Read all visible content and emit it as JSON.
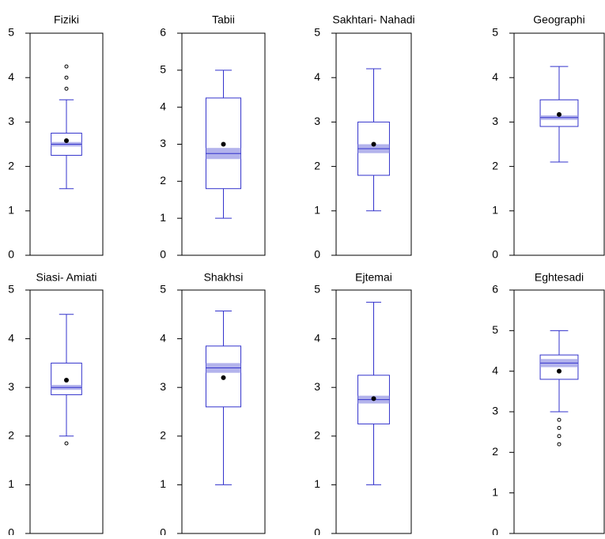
{
  "chart_data": [
    {
      "type": "box",
      "title": "Fiziki",
      "ylim": [
        0,
        5
      ],
      "yticks": [
        0,
        1,
        2,
        3,
        4,
        5
      ],
      "color": "#3333cc",
      "ci_color": "#9999e6",
      "whisker_low": 1.5,
      "q1": 2.25,
      "median": 2.5,
      "q3": 2.75,
      "whisker_high": 3.5,
      "ci": [
        2.45,
        2.55
      ],
      "mean": 2.58,
      "outliers": [
        3.75,
        4.0,
        4.25
      ]
    },
    {
      "type": "box",
      "title": "Tabii",
      "ylim": [
        0,
        6
      ],
      "yticks": [
        0,
        1,
        2,
        3,
        4,
        5,
        6
      ],
      "color": "#3333cc",
      "ci_color": "#9999e6",
      "whisker_low": 1.0,
      "q1": 1.8,
      "median": 2.75,
      "q3": 4.25,
      "whisker_high": 5.0,
      "ci": [
        2.6,
        2.9
      ],
      "mean": 3.0,
      "outliers": []
    },
    {
      "type": "box",
      "title": "Sakhtari- Nahadi",
      "ylim": [
        0,
        5
      ],
      "yticks": [
        0,
        1,
        2,
        3,
        4,
        5
      ],
      "color": "#3333cc",
      "ci_color": "#9999e6",
      "whisker_low": 1.0,
      "q1": 1.8,
      "median": 2.4,
      "q3": 3.0,
      "whisker_high": 4.2,
      "ci": [
        2.3,
        2.5
      ],
      "mean": 2.5,
      "outliers": []
    },
    {
      "type": "box",
      "title": "Geographi",
      "ylim": [
        0,
        5
      ],
      "yticks": [
        0,
        1,
        2,
        3,
        4,
        5
      ],
      "color": "#3333cc",
      "ci_color": "#9999e6",
      "whisker_low": 2.1,
      "q1": 2.9,
      "median": 3.1,
      "q3": 3.5,
      "whisker_high": 4.25,
      "ci": [
        3.05,
        3.15
      ],
      "mean": 3.17,
      "outliers": []
    },
    {
      "type": "box",
      "title": "Siasi- Amiati",
      "ylim": [
        0,
        5
      ],
      "yticks": [
        0,
        1,
        2,
        3,
        4,
        5
      ],
      "color": "#3333cc",
      "ci_color": "#9999e6",
      "whisker_low": 2.0,
      "q1": 2.85,
      "median": 3.0,
      "q3": 3.5,
      "whisker_high": 4.5,
      "ci": [
        2.95,
        3.05
      ],
      "mean": 3.15,
      "outliers": [
        1.85
      ]
    },
    {
      "type": "box",
      "title": "Shakhsi",
      "ylim": [
        0,
        5
      ],
      "yticks": [
        0,
        1,
        2,
        3,
        4,
        5
      ],
      "color": "#3333cc",
      "ci_color": "#9999e6",
      "whisker_low": 1.0,
      "q1": 2.6,
      "median": 3.4,
      "q3": 3.85,
      "whisker_high": 4.57,
      "ci": [
        3.3,
        3.5
      ],
      "mean": 3.2,
      "outliers": []
    },
    {
      "type": "box",
      "title": "Ejtemai",
      "ylim": [
        0,
        5
      ],
      "yticks": [
        0,
        1,
        2,
        3,
        4,
        5
      ],
      "color": "#3333cc",
      "ci_color": "#9999e6",
      "whisker_low": 1.0,
      "q1": 2.25,
      "median": 2.75,
      "q3": 3.25,
      "whisker_high": 4.75,
      "ci": [
        2.67,
        2.83
      ],
      "mean": 2.77,
      "outliers": []
    },
    {
      "type": "box",
      "title": "Eghtesadi",
      "ylim": [
        0,
        6
      ],
      "yticks": [
        0,
        1,
        2,
        3,
        4,
        5,
        6
      ],
      "color": "#3333cc",
      "ci_color": "#9999e6",
      "whisker_low": 3.0,
      "q1": 3.8,
      "median": 4.2,
      "q3": 4.4,
      "whisker_high": 5.0,
      "ci": [
        4.1,
        4.3
      ],
      "mean": 4.0,
      "outliers": [
        2.2,
        2.4,
        2.6,
        2.8
      ]
    }
  ]
}
